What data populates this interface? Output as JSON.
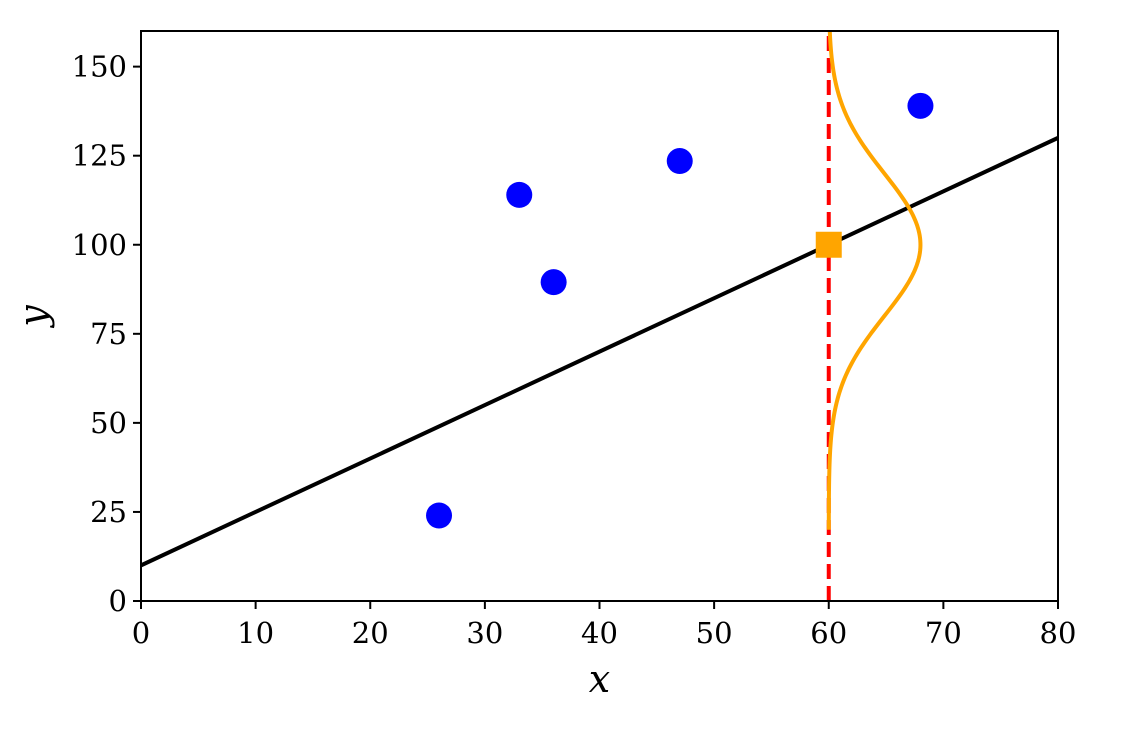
{
  "chart_data": {
    "type": "scatter",
    "title": "",
    "xlabel": "x",
    "ylabel": "y",
    "xlim": [
      0,
      80
    ],
    "ylim": [
      0,
      160
    ],
    "xticks": [
      0,
      10,
      20,
      30,
      40,
      50,
      60,
      70,
      80
    ],
    "yticks": [
      0,
      25,
      50,
      75,
      100,
      125,
      150
    ],
    "grid": false,
    "legend": "none",
    "points": {
      "color": "#0000ff",
      "x": [
        26,
        33,
        36,
        47,
        68
      ],
      "y": [
        24,
        114,
        89.5,
        123.5,
        139
      ]
    },
    "regression_line": {
      "color": "#000000",
      "intercept": 10,
      "slope": 1.5
    },
    "prediction_point": {
      "color": "#ffa500",
      "x": 60,
      "y": 100
    },
    "vertical_line": {
      "color": "#ff0000",
      "x": 60,
      "style": "dashed"
    },
    "gaussian": {
      "color": "#ffa500",
      "x_base": 60,
      "mean": 100,
      "std": 20,
      "y_range": [
        20,
        160
      ],
      "peak_width": 8
    }
  }
}
